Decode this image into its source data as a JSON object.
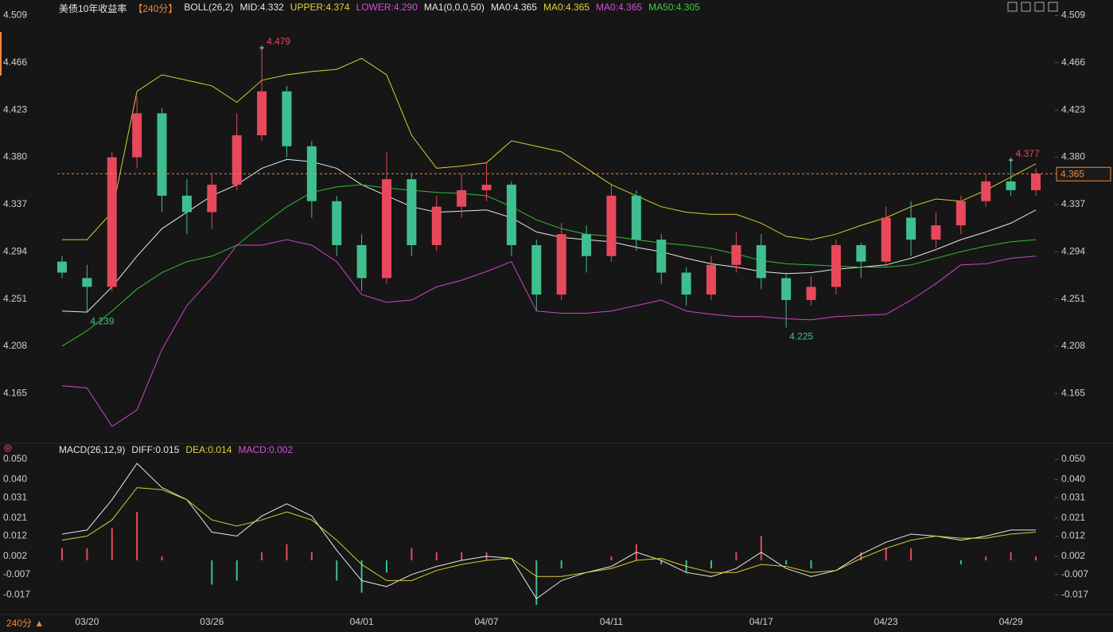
{
  "chart_data": [
    {
      "type": "candlestick",
      "header": [
        {
          "text": "美债10年收益率",
          "color": "#e6e6e6"
        },
        {
          "text": "【240分】",
          "color": "#f0883e"
        },
        {
          "text": "BOLL(26,2)",
          "color": "#e6e6e6"
        },
        {
          "text": "MID:4.332",
          "color": "#e6e6e6"
        },
        {
          "text": "UPPER:4.374",
          "color": "#e0d33a"
        },
        {
          "text": "LOWER:4.290",
          "color": "#d64fd6"
        },
        {
          "text": "MA1(0,0,0,50)",
          "color": "#e6e6e6"
        },
        {
          "text": "MA0:4.365",
          "color": "#e6e6e6"
        },
        {
          "text": "MA0:4.365",
          "color": "#e0d33a"
        },
        {
          "text": "MA0:4.365",
          "color": "#d64fd6"
        },
        {
          "text": "MA50:4.305",
          "color": "#3fcf3f"
        }
      ],
      "categories": [
        null,
        "03/20",
        null,
        null,
        null,
        null,
        "03/26",
        null,
        null,
        null,
        null,
        null,
        "04/01",
        null,
        null,
        null,
        null,
        "04/07",
        null,
        null,
        null,
        null,
        "04/11",
        null,
        null,
        null,
        null,
        null,
        "04/17",
        null,
        null,
        null,
        null,
        "04/23",
        null,
        null,
        null,
        null,
        "04/29",
        null
      ],
      "open": [
        4.285,
        4.27,
        4.262,
        4.38,
        4.42,
        4.345,
        4.33,
        4.355,
        4.4,
        4.44,
        4.39,
        4.34,
        4.3,
        4.27,
        4.36,
        4.3,
        4.335,
        4.35,
        4.355,
        4.3,
        4.255,
        4.31,
        4.29,
        4.345,
        4.305,
        4.275,
        4.255,
        4.282,
        4.3,
        4.27,
        4.25,
        4.262,
        4.3,
        4.285,
        4.325,
        4.305,
        4.318,
        4.34,
        4.358,
        4.35
      ],
      "high": [
        4.29,
        4.282,
        4.385,
        4.435,
        4.425,
        4.36,
        4.365,
        4.42,
        4.479,
        4.445,
        4.395,
        4.345,
        4.31,
        4.385,
        4.365,
        4.345,
        4.365,
        4.375,
        4.358,
        4.305,
        4.32,
        4.318,
        4.355,
        4.35,
        4.31,
        4.28,
        4.29,
        4.312,
        4.31,
        4.275,
        4.272,
        4.305,
        4.302,
        4.335,
        4.34,
        4.33,
        4.345,
        4.365,
        4.377,
        4.37
      ],
      "low": [
        4.27,
        4.239,
        4.258,
        4.37,
        4.33,
        4.31,
        4.315,
        4.35,
        4.395,
        4.38,
        4.325,
        4.29,
        4.258,
        4.265,
        4.29,
        4.295,
        4.325,
        4.34,
        4.29,
        4.24,
        4.25,
        4.275,
        4.285,
        4.295,
        4.265,
        4.245,
        4.25,
        4.275,
        4.26,
        4.225,
        4.245,
        4.255,
        4.27,
        4.28,
        4.29,
        4.298,
        4.31,
        4.335,
        4.345,
        4.345
      ],
      "close": [
        4.275,
        4.262,
        4.38,
        4.42,
        4.345,
        4.33,
        4.355,
        4.4,
        4.44,
        4.39,
        4.34,
        4.3,
        4.27,
        4.36,
        4.3,
        4.335,
        4.35,
        4.355,
        4.3,
        4.255,
        4.31,
        4.29,
        4.345,
        4.305,
        4.275,
        4.255,
        4.282,
        4.3,
        4.27,
        4.25,
        4.262,
        4.3,
        4.285,
        4.325,
        4.305,
        4.318,
        4.34,
        4.358,
        4.35,
        4.365
      ],
      "up_color": "#e8485c",
      "down_color": "#3fbf8f",
      "lines": [
        {
          "color": "#d9cc33",
          "values": [
            4.305,
            4.305,
            4.33,
            4.44,
            4.455,
            4.45,
            4.445,
            4.43,
            4.45,
            4.455,
            4.458,
            4.46,
            4.47,
            4.455,
            4.4,
            4.37,
            4.372,
            4.375,
            4.395,
            4.39,
            4.385,
            4.37,
            4.355,
            4.345,
            4.335,
            4.33,
            4.328,
            4.328,
            4.32,
            4.308,
            4.305,
            4.31,
            4.318,
            4.325,
            4.335,
            4.342,
            4.34,
            4.35,
            4.362,
            4.374
          ]
        },
        {
          "color": "#e8e8e8",
          "values": [
            4.24,
            4.239,
            4.262,
            4.29,
            4.315,
            4.33,
            4.345,
            4.355,
            4.37,
            4.378,
            4.376,
            4.37,
            4.355,
            4.345,
            4.335,
            4.33,
            4.331,
            4.332,
            4.325,
            4.312,
            4.307,
            4.305,
            4.303,
            4.298,
            4.294,
            4.288,
            4.283,
            4.28,
            4.276,
            4.274,
            4.275,
            4.278,
            4.28,
            4.282,
            4.288,
            4.296,
            4.305,
            4.312,
            4.32,
            4.332
          ]
        },
        {
          "color": "#cc44cc",
          "values": [
            4.172,
            4.17,
            4.135,
            4.15,
            4.205,
            4.245,
            4.27,
            4.3,
            4.3,
            4.305,
            4.3,
            4.285,
            4.255,
            4.248,
            4.25,
            4.262,
            4.268,
            4.276,
            4.285,
            4.24,
            4.238,
            4.238,
            4.24,
            4.245,
            4.25,
            4.24,
            4.237,
            4.235,
            4.235,
            4.233,
            4.232,
            4.235,
            4.236,
            4.237,
            4.25,
            4.265,
            4.282,
            4.283,
            4.288,
            4.29
          ]
        },
        {
          "color": "#2fbf2f",
          "values": [
            4.208,
            4.222,
            4.24,
            4.26,
            4.275,
            4.285,
            4.29,
            4.3,
            4.318,
            4.335,
            4.348,
            4.353,
            4.355,
            4.352,
            4.35,
            4.348,
            4.347,
            4.345,
            4.335,
            4.323,
            4.315,
            4.31,
            4.308,
            4.305,
            4.302,
            4.3,
            4.297,
            4.292,
            4.286,
            4.283,
            4.282,
            4.281,
            4.28,
            4.28,
            4.282,
            4.288,
            4.294,
            4.299,
            4.303,
            4.305
          ]
        }
      ],
      "max_labels": [
        4.479,
        4.377
      ],
      "min_labels": [
        4.239,
        4.225
      ],
      "current_value": 4.365,
      "ylim": [
        4.121,
        4.513
      ],
      "yticks": [
        4.509,
        4.466,
        4.423,
        {
          "value": 4.38,
          "label": "4.380"
        },
        4.337,
        4.294,
        4.251,
        4.208,
        4.165
      ],
      "interval_label": "240分 ▲"
    },
    {
      "type": "macd",
      "header": [
        {
          "text": "MACD(26,12,9)",
          "color": "#e6e6e6"
        },
        {
          "text": "DIFF:0.015",
          "color": "#e6e6e6"
        },
        {
          "text": "DEA:0.014",
          "color": "#e0d33a"
        },
        {
          "text": "MACD:0.002",
          "color": "#d64fd6"
        }
      ],
      "series": [
        {
          "color": "#e8e8e8",
          "values": [
            0.013,
            0.015,
            0.03,
            0.048,
            0.036,
            0.03,
            0.014,
            0.012,
            0.022,
            0.028,
            0.022,
            0.005,
            -0.01,
            -0.013,
            -0.007,
            -0.003,
            0.0,
            0.002,
            0.001,
            -0.019,
            -0.01,
            -0.006,
            -0.003,
            0.004,
            0.0,
            -0.006,
            -0.008,
            -0.004,
            0.004,
            -0.004,
            -0.008,
            -0.005,
            0.003,
            0.009,
            0.013,
            0.012,
            0.01,
            0.012,
            0.015,
            0.015
          ]
        },
        {
          "color": "#d9cc33",
          "values": [
            0.01,
            0.012,
            0.02,
            0.036,
            0.035,
            0.03,
            0.02,
            0.017,
            0.02,
            0.024,
            0.02,
            0.01,
            -0.002,
            -0.01,
            -0.01,
            -0.005,
            -0.002,
            0.0,
            0.001,
            -0.008,
            -0.008,
            -0.006,
            -0.004,
            0.0,
            0.001,
            -0.003,
            -0.006,
            -0.006,
            -0.002,
            -0.003,
            -0.006,
            -0.005,
            0.001,
            0.006,
            0.01,
            0.012,
            0.011,
            0.011,
            0.013,
            0.014
          ]
        }
      ],
      "histogram": [
        0.006,
        0.006,
        0.016,
        0.024,
        0.002,
        0.0,
        -0.012,
        -0.01,
        0.004,
        0.008,
        0.004,
        -0.01,
        -0.016,
        -0.006,
        0.006,
        0.004,
        0.004,
        0.004,
        0.0,
        -0.022,
        -0.004,
        0.0,
        0.002,
        0.008,
        -0.002,
        -0.006,
        -0.004,
        0.004,
        0.012,
        -0.002,
        -0.004,
        0.0,
        0.004,
        0.006,
        0.006,
        0.0,
        -0.002,
        0.002,
        0.004,
        0.002
      ],
      "up_color": "#e8485c",
      "down_color": "#3fbf8f",
      "ylim": [
        -0.026,
        0.052
      ],
      "yticks": [
        {
          "value": 0.05,
          "label": "0.050"
        },
        {
          "value": 0.04,
          "label": "0.040"
        },
        0.031,
        0.021,
        0.012,
        0.002,
        -0.007,
        -0.017
      ]
    }
  ]
}
